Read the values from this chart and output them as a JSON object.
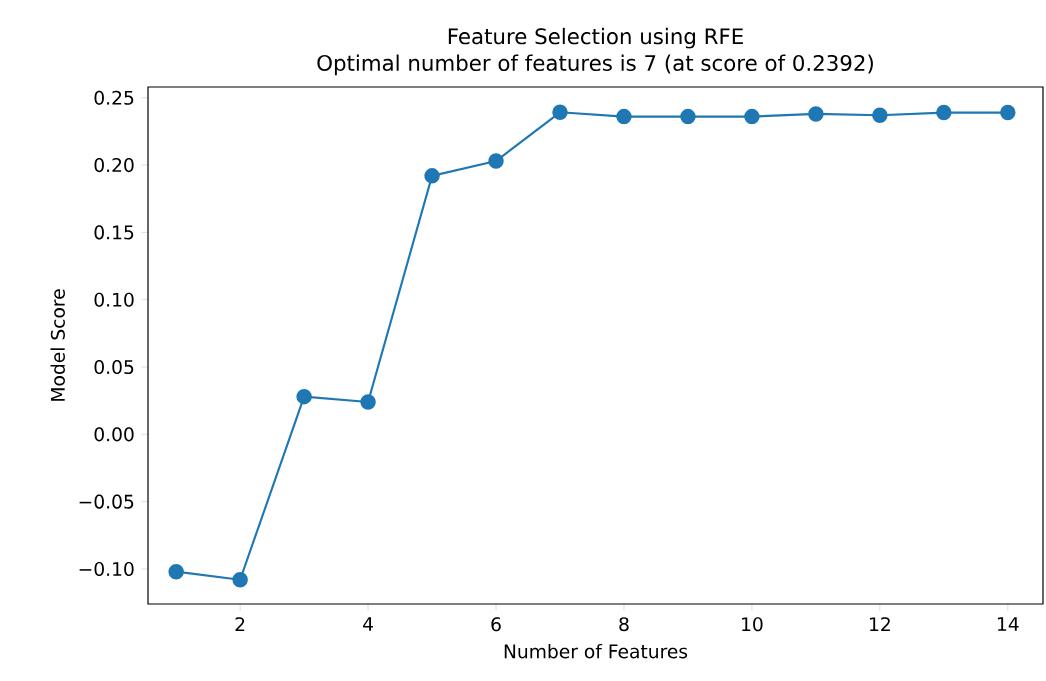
{
  "chart_data": {
    "type": "line",
    "title": "Feature Selection using RFE",
    "subtitle": "Optimal number of features is 7 (at score of 0.2392)",
    "xlabel": "Number of Features",
    "ylabel": "Model Score",
    "x": [
      1,
      2,
      3,
      4,
      5,
      6,
      7,
      8,
      9,
      10,
      11,
      12,
      13,
      14
    ],
    "series": [
      {
        "color": "#1f77b4",
        "values": [
          -0.102,
          -0.108,
          0.028,
          0.024,
          0.192,
          0.203,
          0.2392,
          0.236,
          0.236,
          0.236,
          0.238,
          0.237,
          0.239,
          0.239
        ]
      }
    ],
    "xlim": [
      0.56,
      14.55
    ],
    "ylim": [
      -0.126,
      0.258
    ],
    "xticks": [
      2,
      4,
      6,
      8,
      10,
      12,
      14
    ],
    "yticks": [
      {
        "value": -0.1,
        "label": "−0.10"
      },
      {
        "value": -0.05,
        "label": "−0.05"
      },
      {
        "value": 0,
        "label": "0.00"
      },
      {
        "value": 0.05,
        "label": "0.05"
      },
      {
        "value": 0.1,
        "label": "0.10"
      },
      {
        "value": 0.15,
        "label": "0.15"
      },
      {
        "value": 0.2,
        "label": "0.20"
      },
      {
        "value": 0.25,
        "label": "0.25"
      }
    ],
    "marker": "circle"
  }
}
